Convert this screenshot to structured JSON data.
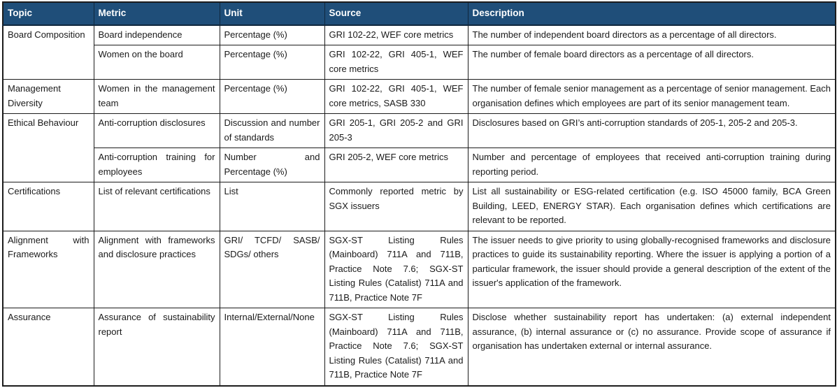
{
  "colors": {
    "header_bg": "#1F4E79",
    "header_text": "#FFFFFF",
    "border": "#1C1C1C",
    "body_text": "#1A1A1A"
  },
  "table": {
    "headers": [
      "Topic",
      "Metric",
      "Unit",
      "Source",
      "Description"
    ],
    "rows": [
      {
        "topic": {
          "label": "Board Composition",
          "rowspan": 2
        },
        "metric": "Board independence",
        "unit": "Percentage (%)",
        "source": "GRI 102-22, WEF core metrics",
        "description": "The number of independent board directors as a percentage of all directors."
      },
      {
        "topic": null,
        "metric": "Women on the board",
        "unit": "Percentage (%)",
        "source": "GRI 102-22, GRI 405-1, WEF core metrics",
        "description": "The number of female board directors as a percentage of all directors."
      },
      {
        "topic": {
          "label": "Management Diversity",
          "rowspan": 1
        },
        "metric": "Women in the management team",
        "unit": "Percentage (%)",
        "source": "GRI 102-22, GRI 405-1, WEF core metrics, SASB 330",
        "description": "The number of female senior management as a percentage of senior management. Each organisation defines which employees are part of its senior management team."
      },
      {
        "topic": {
          "label": "Ethical Behaviour",
          "rowspan": 2
        },
        "metric": "Anti-corruption disclosures",
        "unit": "Discussion and number of standards",
        "source": "GRI 205-1, GRI 205-2 and GRI 205-3",
        "description": "Disclosures based on GRI’s anti-corruption standards of 205-1, 205-2 and 205-3."
      },
      {
        "topic": null,
        "metric": "Anti-corruption training for employees",
        "unit": "Number and Percentage (%)",
        "source": "GRI 205-2, WEF core metrics",
        "description": "Number and percentage of employees that received anti-corruption training during reporting period."
      },
      {
        "topic": {
          "label": "Certifications",
          "rowspan": 1
        },
        "metric": "List of relevant certifications",
        "unit": "List",
        "source": "Commonly reported metric by SGX issuers",
        "description": "List all sustainability or ESG-related certification (e.g. ISO 45000 family, BCA Green Building, LEED, ENERGY STAR). Each organisation defines which certifications are relevant to be reported."
      },
      {
        "topic": {
          "label": "Alignment with Frameworks",
          "rowspan": 1
        },
        "metric": "Alignment with frameworks and disclosure practices",
        "unit": "GRI/ TCFD/ SASB/ SDGs/ others",
        "source": "SGX-ST Listing Rules (Mainboard) 711A and 711B, Practice Note 7.6; SGX-ST Listing Rules (Catalist) 711A and 711B, Practice Note 7F",
        "description": "The issuer needs to give priority to using globally-recognised frameworks and disclosure practices to guide its sustainability reporting. Where the issuer is applying a portion of a particular framework, the issuer should provide a general description of the extent of the issuer's application of the framework."
      },
      {
        "topic": {
          "label": "Assurance",
          "rowspan": 1
        },
        "metric": "Assurance of sustainability report",
        "unit": "Internal/External/None",
        "source": "SGX-ST Listing Rules (Mainboard) 711A and 711B, Practice Note 7.6; SGX-ST Listing Rules (Catalist) 711A and 711B, Practice Note 7F",
        "description": "Disclose whether sustainability report has undertaken: (a) external independent assurance, (b) internal assurance or (c) no assurance. Provide scope of assurance if organisation has undertaken external or internal assurance."
      }
    ]
  }
}
